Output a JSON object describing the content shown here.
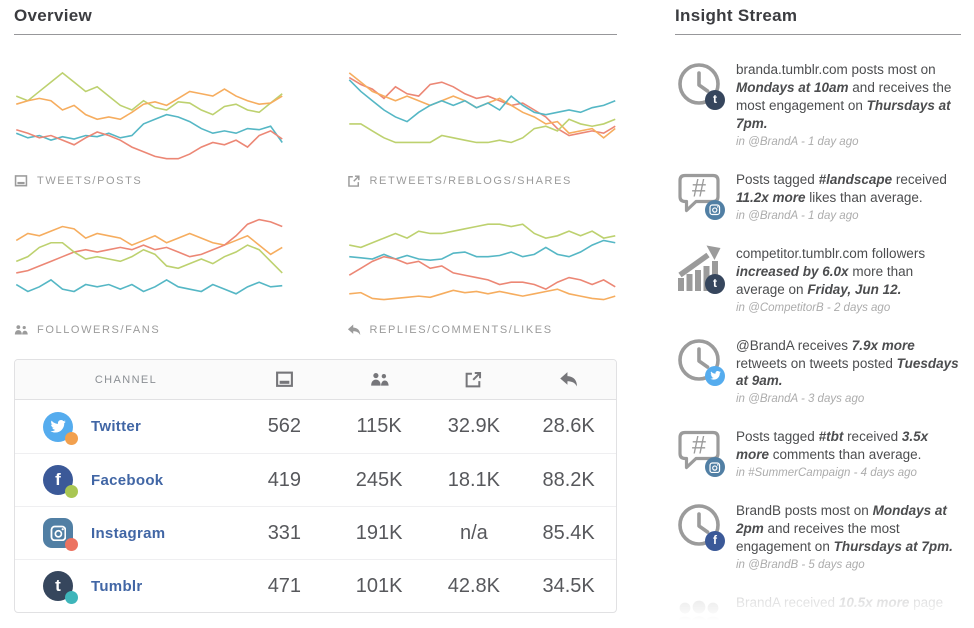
{
  "colors": {
    "lines": {
      "twitter": "#f6ad5f",
      "facebook": "#bdd16f",
      "instagram": "#ec8775",
      "tumblr": "#55b7c5"
    },
    "dots": {
      "twitter": "#f2a04e",
      "facebook": "#a9c653",
      "instagram": "#ec7361",
      "tumblr": "#3eb5ba"
    },
    "brands": {
      "twitter": "#55acee",
      "facebook": "#3b5998",
      "instagram": "#517fa4",
      "tumblr": "#36465d"
    },
    "icon_gray": "#9b9b9b",
    "table_icon_gray": "#76767a"
  },
  "overview": {
    "title": "Overview",
    "table": {
      "channel_header": "CHANNEL",
      "column_icons": [
        "posts-icon",
        "followers-icon",
        "shares-icon",
        "replies-icon"
      ],
      "rows": [
        {
          "channel": "Twitter",
          "network": "twitter",
          "values": [
            "562",
            "115K",
            "32.9K",
            "28.6K"
          ]
        },
        {
          "channel": "Facebook",
          "network": "facebook",
          "values": [
            "419",
            "245K",
            "18.1K",
            "88.2K"
          ]
        },
        {
          "channel": "Instagram",
          "network": "instagram",
          "values": [
            "331",
            "191K",
            "n/a",
            "85.4K"
          ]
        },
        {
          "channel": "Tumblr",
          "network": "tumblr",
          "values": [
            "471",
            "101K",
            "42.8K",
            "34.5K"
          ]
        }
      ]
    }
  },
  "chart_data": [
    {
      "type": "line",
      "label": "TWEETS/POSTS",
      "icon": "posts-icon",
      "series": [
        {
          "name": "facebook",
          "values": [
            62,
            58,
            66,
            74,
            82,
            74,
            66,
            70,
            62,
            54,
            50,
            58,
            52,
            50,
            57,
            56,
            50,
            46,
            53,
            55,
            50,
            48,
            56,
            64
          ]
        },
        {
          "name": "twitter",
          "values": [
            55,
            58,
            60,
            58,
            50,
            54,
            46,
            42,
            44,
            42,
            48,
            55,
            57,
            54,
            60,
            66,
            64,
            62,
            68,
            62,
            58,
            55,
            56,
            62
          ]
        },
        {
          "name": "tumblr",
          "values": [
            30,
            26,
            28,
            24,
            27,
            25,
            28,
            27,
            30,
            26,
            28,
            38,
            42,
            46,
            44,
            40,
            34,
            30,
            32,
            30,
            34,
            33,
            36,
            22
          ]
        },
        {
          "name": "instagram",
          "values": [
            33,
            30,
            26,
            28,
            24,
            20,
            26,
            31,
            28,
            24,
            18,
            14,
            10,
            8,
            8,
            12,
            18,
            22,
            20,
            24,
            18,
            28,
            32,
            25
          ]
        }
      ]
    },
    {
      "type": "line",
      "label": "RETWEETS/REBLOGS/SHARES",
      "icon": "shares-icon",
      "series": [
        {
          "name": "instagram",
          "values": [
            78,
            72,
            68,
            60,
            70,
            64,
            62,
            72,
            74,
            70,
            64,
            60,
            62,
            58,
            54,
            56,
            50,
            44,
            34,
            28,
            30,
            32,
            30,
            36
          ]
        },
        {
          "name": "twitter",
          "values": [
            82,
            74,
            66,
            62,
            58,
            62,
            58,
            54,
            58,
            62,
            58,
            52,
            56,
            60,
            54,
            48,
            44,
            38,
            40,
            30,
            32,
            34,
            26,
            34
          ]
        },
        {
          "name": "tumblr",
          "values": [
            76,
            66,
            58,
            50,
            44,
            40,
            48,
            54,
            58,
            54,
            58,
            52,
            56,
            50,
            62,
            54,
            48,
            46,
            48,
            50,
            48,
            52,
            54,
            58
          ]
        },
        {
          "name": "facebook",
          "values": [
            38,
            38,
            32,
            26,
            22,
            22,
            22,
            22,
            28,
            26,
            24,
            22,
            22,
            24,
            22,
            26,
            34,
            36,
            32,
            42,
            38,
            36,
            38,
            42
          ]
        }
      ]
    },
    {
      "type": "line",
      "label": "FOLLOWERS/FANS",
      "icon": "followers-icon",
      "series": [
        {
          "name": "twitter",
          "values": [
            66,
            72,
            70,
            74,
            78,
            76,
            68,
            72,
            70,
            68,
            62,
            66,
            70,
            64,
            68,
            72,
            68,
            64,
            62,
            66,
            70,
            62,
            54,
            60
          ]
        },
        {
          "name": "instagram",
          "values": [
            38,
            40,
            44,
            48,
            52,
            56,
            58,
            56,
            58,
            60,
            58,
            62,
            58,
            60,
            56,
            52,
            54,
            58,
            62,
            70,
            80,
            84,
            82,
            78
          ]
        },
        {
          "name": "facebook",
          "values": [
            48,
            52,
            60,
            64,
            64,
            56,
            50,
            52,
            50,
            48,
            52,
            58,
            54,
            44,
            42,
            46,
            50,
            46,
            52,
            56,
            62,
            58,
            48,
            38
          ]
        },
        {
          "name": "tumblr",
          "values": [
            28,
            22,
            26,
            32,
            24,
            22,
            28,
            26,
            28,
            24,
            28,
            22,
            26,
            32,
            26,
            24,
            22,
            28,
            24,
            20,
            26,
            30,
            26,
            27
          ]
        }
      ]
    },
    {
      "type": "line",
      "label": "REPLIES/COMMENTS/LIKES",
      "icon": "replies-icon",
      "series": [
        {
          "name": "facebook",
          "values": [
            62,
            60,
            64,
            68,
            72,
            68,
            74,
            72,
            72,
            74,
            76,
            78,
            80,
            80,
            78,
            80,
            72,
            68,
            70,
            74,
            70,
            74,
            68,
            70
          ]
        },
        {
          "name": "tumblr",
          "values": [
            52,
            51,
            50,
            54,
            50,
            53,
            50,
            49,
            50,
            55,
            56,
            52,
            52,
            53,
            56,
            52,
            54,
            60,
            54,
            52,
            56,
            62,
            66,
            64
          ]
        },
        {
          "name": "instagram",
          "values": [
            36,
            42,
            48,
            52,
            50,
            46,
            48,
            42,
            44,
            38,
            36,
            34,
            32,
            28,
            30,
            30,
            28,
            24,
            30,
            34,
            32,
            28,
            32,
            26
          ]
        },
        {
          "name": "twitter",
          "values": [
            20,
            21,
            16,
            15,
            16,
            17,
            18,
            17,
            20,
            23,
            21,
            22,
            20,
            22,
            20,
            18,
            20,
            22,
            24,
            20,
            18,
            16,
            15,
            18
          ]
        }
      ]
    }
  ],
  "insight_stream": {
    "title": "Insight Stream",
    "items": [
      {
        "icon": "clock-icon",
        "badge": "tumblr",
        "segments": [
          {
            "t": "branda.tumblr.com posts most on "
          },
          {
            "t": "Mondays at 10am",
            "em": true
          },
          {
            "t": " and receives the most engagement on "
          },
          {
            "t": "Thursdays at 7pm.",
            "em": true
          }
        ],
        "meta": "in @BrandA - 1 day ago"
      },
      {
        "icon": "hashtag-icon",
        "badge": "instagram",
        "segments": [
          {
            "t": "Posts tagged "
          },
          {
            "t": "#landscape",
            "em": true
          },
          {
            "t": " received "
          },
          {
            "t": "11.2x more",
            "em": true
          },
          {
            "t": " likes than average."
          }
        ],
        "meta": "in @BrandA - 1 day ago"
      },
      {
        "icon": "trend-icon",
        "badge": "tumblr",
        "segments": [
          {
            "t": "competitor.tumblr.com followers "
          },
          {
            "t": "increased by 6.0x",
            "em": true
          },
          {
            "t": " more than average on "
          },
          {
            "t": "Friday, Jun 12.",
            "em": true
          }
        ],
        "meta": "in @CompetitorB - 2 days ago"
      },
      {
        "icon": "clock-icon",
        "badge": "twitter",
        "segments": [
          {
            "t": "@BrandA receives "
          },
          {
            "t": "7.9x more",
            "em": true
          },
          {
            "t": " retweets on tweets posted "
          },
          {
            "t": "Tuesdays at 9am.",
            "em": true
          }
        ],
        "meta": "in @BrandA - 3 days ago"
      },
      {
        "icon": "hashtag-icon",
        "badge": "instagram",
        "segments": [
          {
            "t": "Posts tagged "
          },
          {
            "t": "#tbt",
            "em": true
          },
          {
            "t": " received "
          },
          {
            "t": "3.5x more",
            "em": true
          },
          {
            "t": " comments than average."
          }
        ],
        "meta": "in #SummerCampaign - 4 days ago"
      },
      {
        "icon": "clock-icon",
        "badge": "facebook",
        "segments": [
          {
            "t": "BrandB posts most on "
          },
          {
            "t": "Mondays at 2pm",
            "em": true
          },
          {
            "t": " and receives the most engagement on "
          },
          {
            "t": "Thursdays at 7pm.",
            "em": true
          }
        ],
        "meta": "in @BrandB - 5 days ago"
      },
      {
        "icon": "people-icon",
        "badge": null,
        "faded": true,
        "segments": [
          {
            "t": "BrandA received "
          },
          {
            "t": "10.5x more",
            "em": true
          },
          {
            "t": " page"
          }
        ],
        "meta": ""
      }
    ]
  }
}
